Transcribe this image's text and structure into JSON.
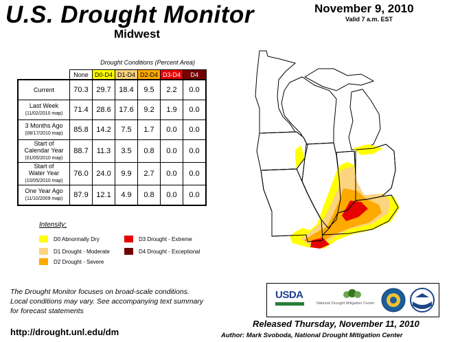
{
  "header": {
    "title": "U.S. Drought Monitor",
    "region": "Midwest",
    "date": "November 9, 2010",
    "valid": "Valid 7 a.m. EST"
  },
  "table": {
    "caption": "Drought Conditions (Percent Area)",
    "columns": [
      "None",
      "D0-D4",
      "D1-D4",
      "D2-D4",
      "D3-D4",
      "D4"
    ],
    "column_colors": [
      "#ffffff",
      "#ffff00",
      "#fcd37f",
      "#ffaa00",
      "#e60000",
      "#730000"
    ],
    "rows": [
      {
        "label": "Current",
        "sub": "",
        "values": [
          "70.3",
          "29.7",
          "18.4",
          "9.5",
          "2.2",
          "0.0"
        ]
      },
      {
        "label": "Last Week",
        "sub": "(11/02/2010 map)",
        "values": [
          "71.4",
          "28.6",
          "17.6",
          "9.2",
          "1.9",
          "0.0"
        ]
      },
      {
        "label": "3 Months Ago",
        "sub": "(08/17/2010 map)",
        "values": [
          "85.8",
          "14.2",
          "7.5",
          "1.7",
          "0.0",
          "0.0"
        ]
      },
      {
        "label": "Start of\nCalendar Year",
        "sub": "(01/05/2010 map)",
        "values": [
          "88.7",
          "11.3",
          "3.5",
          "0.8",
          "0.0",
          "0.0"
        ]
      },
      {
        "label": "Start of\nWater Year",
        "sub": "(10/05/2010 map)",
        "values": [
          "76.0",
          "24.0",
          "9.9",
          "2.7",
          "0.0",
          "0.0"
        ]
      },
      {
        "label": "One Year Ago",
        "sub": "(11/10/2009 map)",
        "values": [
          "87.9",
          "12.1",
          "4.9",
          "0.8",
          "0.0",
          "0.0"
        ]
      }
    ]
  },
  "legend": {
    "title": "Intensity:",
    "items": [
      {
        "label": "D0 Abnormally Dry",
        "color": "#ffff00"
      },
      {
        "label": "D1 Drought - Moderate",
        "color": "#fcd37f"
      },
      {
        "label": "D2 Drought - Severe",
        "color": "#ffaa00"
      },
      {
        "label": "D3 Drought - Extreme",
        "color": "#e60000"
      },
      {
        "label": "D4 Drought - Exceptional",
        "color": "#730000"
      }
    ]
  },
  "footer": {
    "note_lines": [
      "The Drought Monitor focuses on broad-scale conditions.",
      "Local conditions may vary. See accompanying text summary",
      "for forecast statements"
    ],
    "url": "http://drought.unl.edu/dm",
    "released": "Released Thursday, November 11, 2010",
    "author": "Author: Mark Svoboda, National Drought Mitigation Center"
  },
  "logos": {
    "usda": "USDA",
    "ndmc": "National Drought Mitigation Center"
  }
}
